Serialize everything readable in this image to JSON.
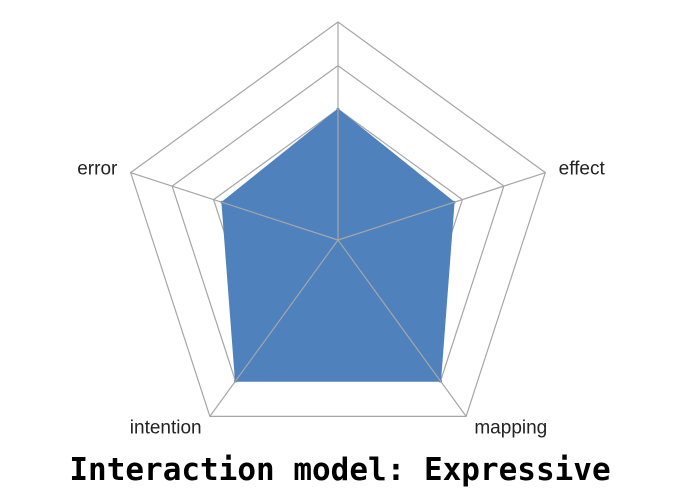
{
  "chart_data": {
    "type": "radar",
    "title": "Interaction model: Expressive",
    "axes": [
      "effect",
      "mapping",
      "intention",
      "error"
    ],
    "top_axis_label": "",
    "categories": [
      "",
      "effect",
      "mapping",
      "intention",
      "error"
    ],
    "values": [
      3.0,
      2.8,
      4.0,
      4.0,
      2.8
    ],
    "rmax": 5,
    "rings": 4,
    "grid": true,
    "legend": "none",
    "colors": {
      "fill": "#4f81bd",
      "grid": "#a6a6a6",
      "text": "#222222"
    }
  }
}
